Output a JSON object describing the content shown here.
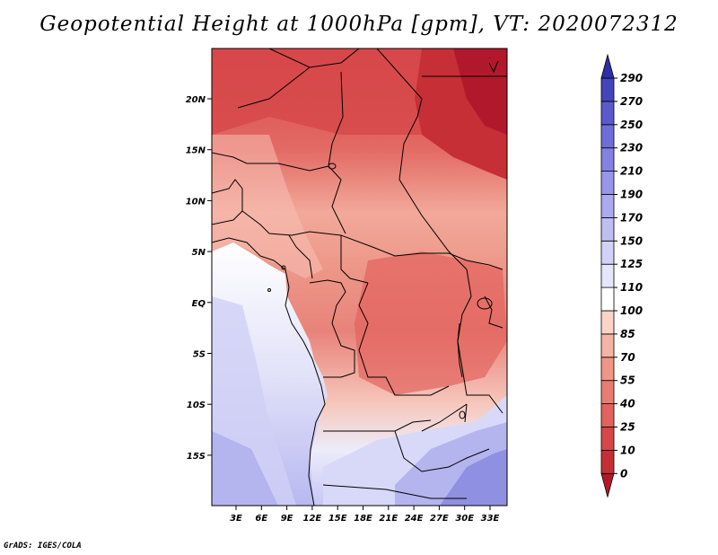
{
  "title": "Geopotential Height at 1000hPa [gpm], VT: 2020072312",
  "credit": "GrADS: IGES/COLA",
  "axes": {
    "lon_labels": [
      "3E",
      "6E",
      "9E",
      "12E",
      "15E",
      "18E",
      "21E",
      "24E",
      "27E",
      "30E",
      "33E"
    ],
    "lat_labels": [
      "20N",
      "15N",
      "10N",
      "5N",
      "EQ",
      "5S",
      "10S",
      "15S"
    ]
  },
  "colorbar": {
    "labels": [
      "290",
      "270",
      "250",
      "230",
      "210",
      "190",
      "170",
      "150",
      "125",
      "110",
      "100",
      "85",
      "70",
      "55",
      "40",
      "25",
      "10",
      "0"
    ],
    "colors": [
      "#b2182b",
      "#c62f35",
      "#d6474a",
      "#e2625e",
      "#e87c72",
      "#ef9687",
      "#f5b3a5",
      "#fbd3c9",
      "#ffffff",
      "#e6e6fa",
      "#d2d2f6",
      "#bebef2",
      "#aaaaee",
      "#9696ea",
      "#8282e0",
      "#6e6ed8",
      "#5a5acb",
      "#4444bb",
      "#2e2ea8"
    ]
  }
}
